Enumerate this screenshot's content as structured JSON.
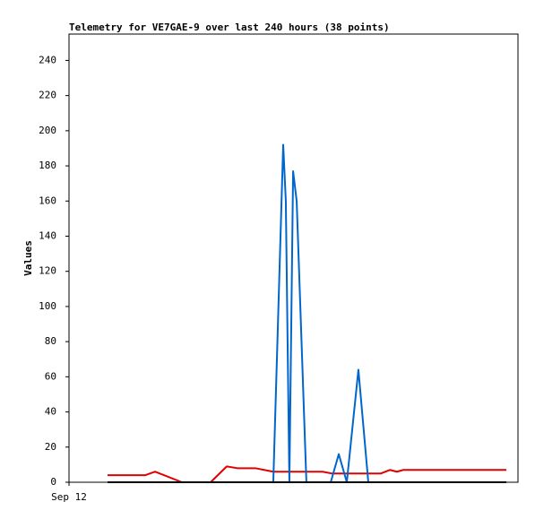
{
  "chart_data": {
    "type": "line",
    "title": "Telemetry for VE7GAE-9 over last 240 hours (38 points)",
    "y_label": "Values",
    "xlim": [
      0,
      240
    ],
    "xticks": [
      {
        "value": 0,
        "label": "Sep 12"
      }
    ],
    "ylim": [
      0,
      255
    ],
    "yticks": [
      0,
      20,
      40,
      60,
      80,
      100,
      120,
      140,
      160,
      180,
      200,
      220,
      240
    ],
    "series": [
      {
        "color": "#e00000",
        "x": [
          20.6,
          40.7,
          46,
          60.4,
          75.7,
          84.3,
          90,
          99.6,
          109.2,
          135.6,
          140.4,
          166.7,
          171.5,
          175.3,
          178.7,
          233.8
        ],
        "values": [
          4,
          4,
          6,
          0,
          0,
          9,
          8,
          8,
          6,
          6,
          5,
          5,
          7,
          6,
          7,
          7
        ]
      },
      {
        "color": "#0066cc",
        "x": [
          109.2,
          114.5,
          115.9,
          117.8,
          119.8,
          121.7,
          126.9,
          139.9,
          144.2,
          148.5,
          154.7,
          160
        ],
        "values": [
          0,
          192,
          160,
          0,
          177,
          160,
          0,
          0,
          16,
          0,
          64,
          0
        ]
      },
      {
        "color": "#000000",
        "x": [
          20.6,
          233.8
        ],
        "values": [
          0,
          0
        ]
      }
    ]
  }
}
